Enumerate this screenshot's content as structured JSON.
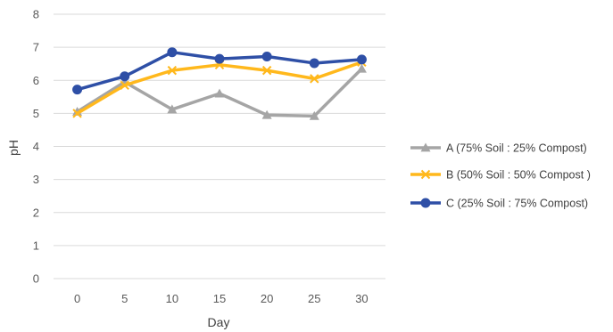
{
  "chart_data": {
    "type": "line",
    "title": "",
    "xlabel": "Day",
    "ylabel": "pH",
    "x": [
      0,
      5,
      10,
      15,
      20,
      25,
      30
    ],
    "categories": [
      "0",
      "5",
      "10",
      "15",
      "20",
      "25",
      "30"
    ],
    "ylim": [
      0,
      8
    ],
    "yticks": [
      "0",
      "1",
      "2",
      "3",
      "4",
      "5",
      "6",
      "7",
      "8"
    ],
    "grid": "horizontal",
    "legend_position": "right",
    "series": [
      {
        "name": "A (75% Soil : 25% Compost)",
        "values": [
          5.05,
          5.95,
          5.12,
          5.6,
          4.95,
          4.92,
          6.35
        ],
        "color": "#A5A5A5",
        "marker": "triangle"
      },
      {
        "name": "B (50% Soil : 50% Compost )",
        "values": [
          5.0,
          5.85,
          6.3,
          6.47,
          6.3,
          6.05,
          6.55
        ],
        "color": "#FFB81C",
        "marker": "x"
      },
      {
        "name": "C (25% Soil : 75% Compost)",
        "values": [
          5.72,
          6.12,
          6.85,
          6.65,
          6.72,
          6.52,
          6.63
        ],
        "color": "#2E4FA6",
        "marker": "circle"
      }
    ]
  }
}
